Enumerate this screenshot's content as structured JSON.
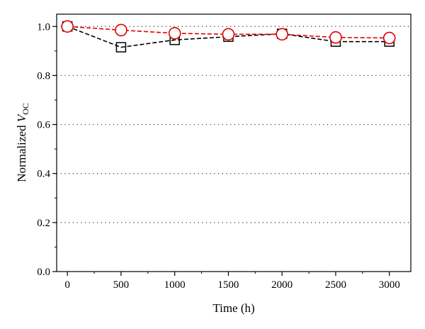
{
  "chart_data": {
    "type": "line",
    "xlabel": "Time (h)",
    "ylabel": {
      "prefix": "Normalized ",
      "var": "V",
      "sub": "OC"
    },
    "xlim": [
      -100,
      3200
    ],
    "ylim": [
      0,
      1.05
    ],
    "xticks": [
      0,
      500,
      1000,
      1500,
      2000,
      2500,
      3000
    ],
    "xtick_labels": [
      "0",
      "500",
      "1000",
      "1500",
      "2000",
      "2500",
      "3000"
    ],
    "yticks": [
      0.0,
      0.2,
      0.4,
      0.6,
      0.8,
      1.0
    ],
    "ytick_labels": [
      "0.0",
      "0.2",
      "0.4",
      "0.6",
      "0.8",
      "1.0"
    ],
    "grid": "horizontal dotted",
    "series": [
      {
        "marker": "square",
        "color": "#000000",
        "line": "dashed",
        "x": [
          0,
          500,
          1000,
          1500,
          2000,
          2500,
          3000
        ],
        "y": [
          1.0,
          0.915,
          0.945,
          0.958,
          0.97,
          0.938,
          0.938
        ]
      },
      {
        "marker": "circle",
        "color": "#e00000",
        "line": "dashed",
        "x": [
          0,
          500,
          1000,
          1500,
          2000,
          2500,
          3000
        ],
        "y": [
          1.0,
          0.985,
          0.972,
          0.968,
          0.968,
          0.955,
          0.953
        ]
      }
    ]
  }
}
